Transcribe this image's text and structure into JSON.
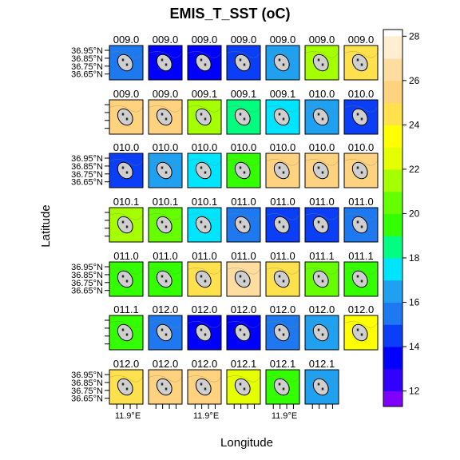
{
  "chart_data": {
    "type": "heatmap",
    "title": "EMIS_T_SST (oC)",
    "xlabel": "Longitude",
    "ylabel": "Latitude",
    "x_tick_label": "11.9°E",
    "y_tick_labels": [
      "36.95°N",
      "36.85°N",
      "36.75°N",
      "36.65°N"
    ],
    "colorbar": {
      "range": [
        11.3,
        28.3
      ],
      "ticks": [
        12,
        14,
        16,
        18,
        20,
        22,
        24,
        26,
        28
      ],
      "levels": [
        11.3,
        12,
        13,
        14,
        15,
        16,
        17,
        18,
        19,
        20,
        21,
        22,
        23,
        24,
        25,
        26,
        27,
        28,
        28.3
      ],
      "colors": [
        "#7f00ff",
        "#3300ff",
        "#0000ff",
        "#0a3ef7",
        "#1e78f0",
        "#1fa0f0",
        "#00e5ff",
        "#00ff80",
        "#33ff00",
        "#66ff00",
        "#a6ff00",
        "#e6ff00",
        "#ffff00",
        "#ffe14d",
        "#ffd27f",
        "#ffdca0",
        "#ffeed0"
      ]
    },
    "panels": [
      {
        "label": "009.0",
        "value": 15.4
      },
      {
        "label": "009.0",
        "value": 13.6
      },
      {
        "label": "009.0",
        "value": 13.8
      },
      {
        "label": "009.0",
        "value": 14.6
      },
      {
        "label": "009.0",
        "value": 16.3
      },
      {
        "label": "009.0",
        "value": 21.5
      },
      {
        "label": "009.0",
        "value": 24.8
      },
      {
        "label": "009.0",
        "value": 25.5
      },
      {
        "label": "009.0",
        "value": 25.6
      },
      {
        "label": "009.1",
        "value": 21.5
      },
      {
        "label": "009.1",
        "value": 18.8
      },
      {
        "label": "009.1",
        "value": 17.4
      },
      {
        "label": "010.0",
        "value": 16.0
      },
      {
        "label": "010.0",
        "value": 14.3
      },
      {
        "label": "010.0",
        "value": 14.8
      },
      {
        "label": "010.0",
        "value": 16.4
      },
      {
        "label": "010.0",
        "value": 17.6
      },
      {
        "label": "010.0",
        "value": 19.4
      },
      {
        "label": "010.0",
        "value": 25.3
      },
      {
        "label": "010.0",
        "value": 25.4
      },
      {
        "label": "010.0",
        "value": 25.1
      },
      {
        "label": "010.1",
        "value": 21.8
      },
      {
        "label": "010.1",
        "value": 20.0
      },
      {
        "label": "010.1",
        "value": 17.4
      },
      {
        "label": "011.0",
        "value": 15.5
      },
      {
        "label": "011.0",
        "value": 14.5
      },
      {
        "label": "011.0",
        "value": 14.3
      },
      {
        "label": "011.0",
        "value": 15.2
      },
      {
        "label": "011.0",
        "value": 19.3
      },
      {
        "label": "011.0",
        "value": 19.7
      },
      {
        "label": "011.0",
        "value": 24.6
      },
      {
        "label": "011.0",
        "value": 26.0
      },
      {
        "label": "011.0",
        "value": 24.7
      },
      {
        "label": "011.1",
        "value": 20.5
      },
      {
        "label": "011.1",
        "value": 19.5
      },
      {
        "label": "011.1",
        "value": 19.0
      },
      {
        "label": "012.0",
        "value": 15.0
      },
      {
        "label": "012.0",
        "value": 13.4
      },
      {
        "label": "012.0",
        "value": 13.5
      },
      {
        "label": "012.0",
        "value": 15.3
      },
      {
        "label": "012.0",
        "value": 16.2
      },
      {
        "label": "012.0",
        "value": 23.0
      },
      {
        "label": "012.0",
        "value": 24.9
      },
      {
        "label": "012.0",
        "value": 25.7
      },
      {
        "label": "012.0",
        "value": 25.3
      },
      {
        "label": "012.1",
        "value": 22.6
      },
      {
        "label": "012.1",
        "value": 19.7
      },
      {
        "label": "012.1",
        "value": 16.0
      }
    ]
  }
}
